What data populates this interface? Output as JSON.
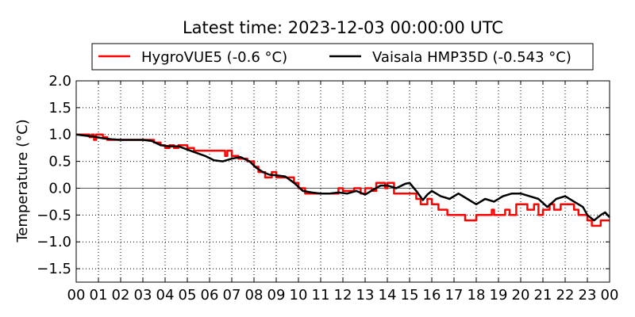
{
  "chart_data": {
    "type": "line",
    "title": "Latest time: 2023-12-03 00:00:00 UTC",
    "xlabel": "",
    "ylabel": "Temperature (°C)",
    "xlim": [
      0,
      24
    ],
    "ylim": [
      -1.75,
      2.0
    ],
    "x_tick_labels": [
      "00",
      "01",
      "02",
      "03",
      "04",
      "05",
      "06",
      "07",
      "08",
      "09",
      "10",
      "11",
      "12",
      "13",
      "14",
      "15",
      "16",
      "17",
      "18",
      "19",
      "20",
      "21",
      "22",
      "23",
      "00"
    ],
    "y_ticks": [
      2.0,
      1.5,
      1.0,
      0.5,
      0.0,
      -0.5,
      -1.0,
      -1.5
    ],
    "y_tick_labels": [
      "2.0",
      "1.5",
      "1.0",
      "0.5",
      "0.0",
      "−0.5",
      "−1.0",
      "−1.5"
    ],
    "grid": true,
    "zero_line": true,
    "legend_position": "top",
    "series": [
      {
        "name": "HygroVUE5 (-0.6 °C)",
        "color": "#ff0000",
        "points": [
          [
            0.0,
            1.0
          ],
          [
            0.5,
            1.0
          ],
          [
            0.6,
            0.95
          ],
          [
            0.7,
            1.0
          ],
          [
            0.8,
            0.9
          ],
          [
            0.9,
            1.0
          ],
          [
            1.1,
            1.0
          ],
          [
            1.2,
            0.95
          ],
          [
            1.4,
            0.9
          ],
          [
            2.0,
            0.9
          ],
          [
            3.0,
            0.9
          ],
          [
            3.5,
            0.85
          ],
          [
            3.8,
            0.8
          ],
          [
            4.0,
            0.75
          ],
          [
            4.2,
            0.8
          ],
          [
            4.4,
            0.75
          ],
          [
            4.6,
            0.8
          ],
          [
            5.0,
            0.75
          ],
          [
            5.3,
            0.7
          ],
          [
            5.8,
            0.7
          ],
          [
            6.0,
            0.7
          ],
          [
            6.5,
            0.7
          ],
          [
            6.7,
            0.6
          ],
          [
            6.8,
            0.7
          ],
          [
            7.0,
            0.6
          ],
          [
            7.3,
            0.55
          ],
          [
            7.5,
            0.55
          ],
          [
            7.7,
            0.5
          ],
          [
            8.0,
            0.4
          ],
          [
            8.2,
            0.3
          ],
          [
            8.5,
            0.2
          ],
          [
            8.8,
            0.3
          ],
          [
            9.0,
            0.2
          ],
          [
            9.5,
            0.2
          ],
          [
            9.8,
            0.1
          ],
          [
            10.0,
            0.0
          ],
          [
            10.3,
            -0.1
          ],
          [
            10.6,
            -0.1
          ],
          [
            11.0,
            -0.1
          ],
          [
            11.5,
            -0.1
          ],
          [
            11.8,
            0.0
          ],
          [
            12.0,
            -0.05
          ],
          [
            12.5,
            0.0
          ],
          [
            12.8,
            -0.1
          ],
          [
            13.0,
            0.0
          ],
          [
            13.3,
            -0.05
          ],
          [
            13.5,
            0.1
          ],
          [
            13.7,
            0.1
          ],
          [
            13.9,
            0.0
          ],
          [
            14.0,
            0.1
          ],
          [
            14.3,
            -0.1
          ],
          [
            14.8,
            -0.1
          ],
          [
            15.0,
            -0.1
          ],
          [
            15.3,
            -0.2
          ],
          [
            15.5,
            -0.3
          ],
          [
            15.8,
            -0.2
          ],
          [
            16.0,
            -0.3
          ],
          [
            16.3,
            -0.4
          ],
          [
            16.5,
            -0.4
          ],
          [
            16.7,
            -0.5
          ],
          [
            17.0,
            -0.5
          ],
          [
            17.2,
            -0.5
          ],
          [
            17.5,
            -0.6
          ],
          [
            17.8,
            -0.6
          ],
          [
            18.0,
            -0.5
          ],
          [
            18.5,
            -0.5
          ],
          [
            18.7,
            -0.4
          ],
          [
            18.8,
            -0.5
          ],
          [
            19.0,
            -0.5
          ],
          [
            19.3,
            -0.4
          ],
          [
            19.5,
            -0.5
          ],
          [
            19.8,
            -0.3
          ],
          [
            20.0,
            -0.3
          ],
          [
            20.3,
            -0.4
          ],
          [
            20.6,
            -0.3
          ],
          [
            20.8,
            -0.5
          ],
          [
            21.0,
            -0.4
          ],
          [
            21.3,
            -0.3
          ],
          [
            21.5,
            -0.4
          ],
          [
            21.8,
            -0.3
          ],
          [
            22.0,
            -0.3
          ],
          [
            22.2,
            -0.3
          ],
          [
            22.4,
            -0.4
          ],
          [
            22.6,
            -0.5
          ],
          [
            22.8,
            -0.5
          ],
          [
            23.0,
            -0.6
          ],
          [
            23.2,
            -0.7
          ],
          [
            23.4,
            -0.7
          ],
          [
            23.6,
            -0.6
          ],
          [
            23.8,
            -0.6
          ],
          [
            24.0,
            -0.6
          ]
        ]
      },
      {
        "name": "Vaisala HMP35D (-0.543 °C)",
        "color": "#000000",
        "points": [
          [
            0.0,
            1.0
          ],
          [
            0.4,
            0.98
          ],
          [
            0.8,
            0.96
          ],
          [
            1.2,
            0.93
          ],
          [
            1.6,
            0.91
          ],
          [
            2.0,
            0.9
          ],
          [
            2.5,
            0.9
          ],
          [
            3.0,
            0.9
          ],
          [
            3.4,
            0.88
          ],
          [
            3.8,
            0.8
          ],
          [
            4.2,
            0.78
          ],
          [
            4.6,
            0.78
          ],
          [
            5.0,
            0.72
          ],
          [
            5.4,
            0.66
          ],
          [
            5.8,
            0.6
          ],
          [
            6.2,
            0.52
          ],
          [
            6.6,
            0.5
          ],
          [
            7.0,
            0.55
          ],
          [
            7.4,
            0.58
          ],
          [
            7.8,
            0.5
          ],
          [
            8.1,
            0.38
          ],
          [
            8.4,
            0.3
          ],
          [
            8.7,
            0.25
          ],
          [
            9.0,
            0.24
          ],
          [
            9.4,
            0.22
          ],
          [
            9.8,
            0.1
          ],
          [
            10.2,
            -0.05
          ],
          [
            10.6,
            -0.08
          ],
          [
            11.0,
            -0.1
          ],
          [
            11.4,
            -0.1
          ],
          [
            11.8,
            -0.08
          ],
          [
            12.2,
            -0.1
          ],
          [
            12.6,
            -0.05
          ],
          [
            13.0,
            -0.12
          ],
          [
            13.4,
            -0.02
          ],
          [
            13.7,
            0.05
          ],
          [
            14.0,
            0.05
          ],
          [
            14.4,
            0.0
          ],
          [
            14.8,
            0.08
          ],
          [
            15.0,
            0.1
          ],
          [
            15.3,
            -0.05
          ],
          [
            15.6,
            -0.22
          ],
          [
            15.8,
            -0.12
          ],
          [
            16.0,
            -0.05
          ],
          [
            16.4,
            -0.15
          ],
          [
            16.8,
            -0.2
          ],
          [
            17.2,
            -0.1
          ],
          [
            17.6,
            -0.2
          ],
          [
            18.0,
            -0.3
          ],
          [
            18.4,
            -0.2
          ],
          [
            18.8,
            -0.25
          ],
          [
            19.2,
            -0.15
          ],
          [
            19.6,
            -0.1
          ],
          [
            20.0,
            -0.1
          ],
          [
            20.4,
            -0.15
          ],
          [
            20.8,
            -0.2
          ],
          [
            21.2,
            -0.35
          ],
          [
            21.6,
            -0.2
          ],
          [
            22.0,
            -0.15
          ],
          [
            22.4,
            -0.25
          ],
          [
            22.8,
            -0.35
          ],
          [
            23.0,
            -0.5
          ],
          [
            23.3,
            -0.6
          ],
          [
            23.6,
            -0.5
          ],
          [
            23.8,
            -0.45
          ],
          [
            24.0,
            -0.543
          ]
        ]
      }
    ]
  }
}
